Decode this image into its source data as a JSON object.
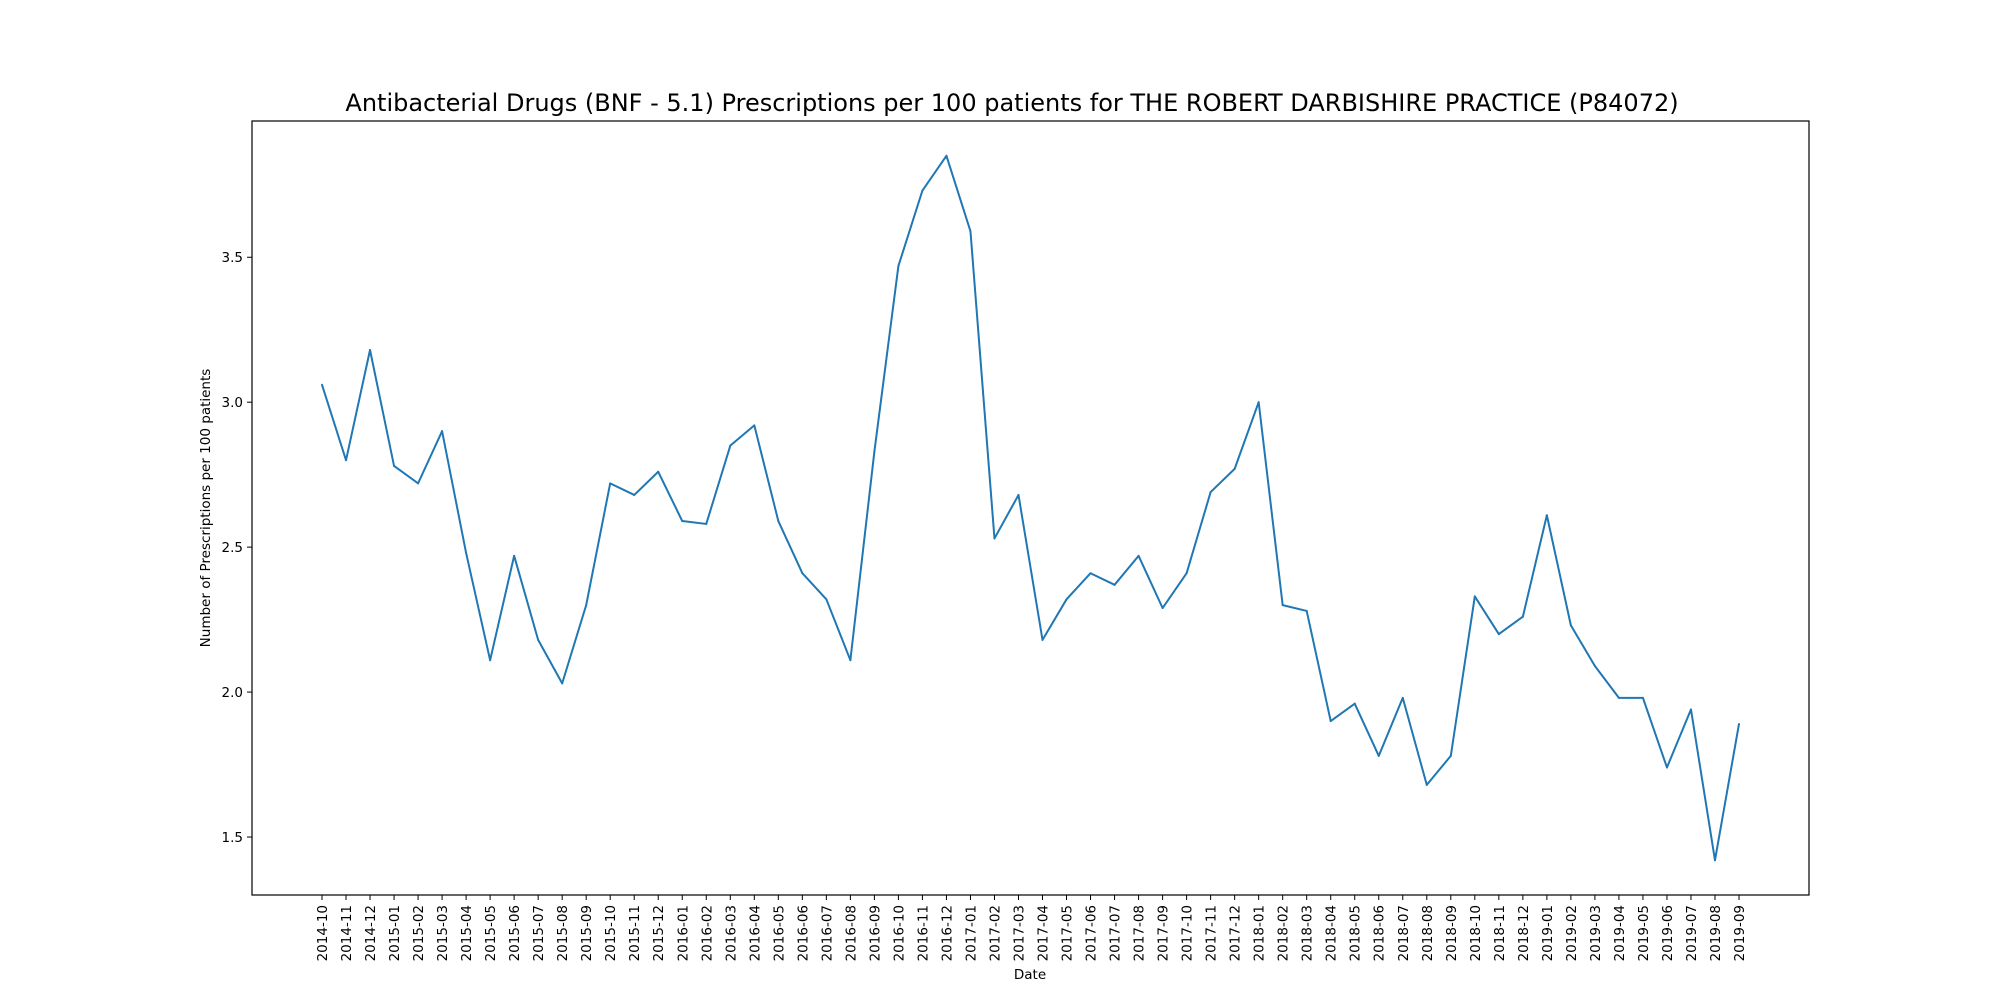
{
  "chart_data": {
    "type": "line",
    "title": "Antibacterial Drugs (BNF - 5.1) Prescriptions per 100 patients for THE ROBERT DARBISHIRE PRACTICE (P84072)",
    "xlabel": "Date",
    "ylabel": "Number of Prescriptions per 100 patients",
    "ylim": [
      1.3,
      3.97
    ],
    "yticks": [
      1.5,
      2.0,
      2.5,
      3.0,
      3.5
    ],
    "ytick_labels": [
      "1.5",
      "2.0",
      "2.5",
      "3.0",
      "3.5"
    ],
    "grid": false,
    "categories": [
      "2014-10",
      "2014-11",
      "2014-12",
      "2015-01",
      "2015-02",
      "2015-03",
      "2015-04",
      "2015-05",
      "2015-06",
      "2015-07",
      "2015-08",
      "2015-09",
      "2015-10",
      "2015-11",
      "2015-12",
      "2016-01",
      "2016-02",
      "2016-03",
      "2016-04",
      "2016-05",
      "2016-06",
      "2016-07",
      "2016-08",
      "2016-09",
      "2016-10",
      "2016-11",
      "2016-12",
      "2017-01",
      "2017-02",
      "2017-03",
      "2017-04",
      "2017-05",
      "2017-06",
      "2017-07",
      "2017-08",
      "2017-09",
      "2017-10",
      "2017-11",
      "2017-12",
      "2018-01",
      "2018-02",
      "2018-03",
      "2018-04",
      "2018-05",
      "2018-06",
      "2018-07",
      "2018-08",
      "2018-09",
      "2018-10",
      "2018-11",
      "2018-12",
      "2019-01",
      "2019-02",
      "2019-03",
      "2019-04",
      "2019-05",
      "2019-06",
      "2019-07",
      "2019-08",
      "2019-09"
    ],
    "series": [
      {
        "name": "Prescriptions per 100 patients",
        "color": "#1f77b4",
        "values": [
          3.06,
          2.8,
          3.18,
          2.78,
          2.72,
          2.9,
          2.48,
          2.11,
          2.47,
          2.18,
          2.03,
          2.3,
          2.72,
          2.68,
          2.76,
          2.59,
          2.58,
          2.85,
          2.92,
          2.59,
          2.41,
          2.32,
          2.11,
          2.83,
          3.47,
          3.73,
          3.85,
          3.59,
          2.53,
          2.68,
          2.18,
          2.32,
          2.41,
          2.37,
          2.47,
          2.29,
          2.41,
          2.69,
          2.77,
          3.0,
          2.3,
          2.28,
          1.9,
          1.96,
          1.78,
          1.98,
          1.68,
          1.78,
          2.33,
          2.2,
          2.26,
          2.61,
          2.23,
          2.09,
          1.98,
          1.98,
          1.74,
          1.94,
          1.42,
          1.89
        ]
      }
    ]
  }
}
